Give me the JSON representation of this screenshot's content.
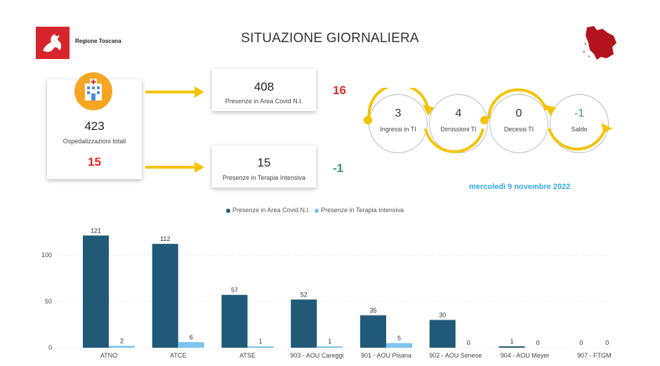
{
  "header": {
    "logo_text": "Regione Toscana",
    "title": "SITUAZIONE GIORNALIERA"
  },
  "totals": {
    "hospitalized_value": "423",
    "hospitalized_label": "Ospedalizzazioni totali",
    "hospitalized_delta": "15"
  },
  "covid_area": {
    "value": "408",
    "label": "Presenze in Area Covid N.I.",
    "delta": "16"
  },
  "icu": {
    "value": "15",
    "label": "Presenze in Terapia Intensiva",
    "delta": "-1"
  },
  "flow": [
    {
      "value": "3",
      "label": "Ingressi in TI"
    },
    {
      "value": "4",
      "label": "Dimissioni TI"
    },
    {
      "value": "0",
      "label": "Decessi TI"
    },
    {
      "value": "-1",
      "label": "Saldo"
    }
  ],
  "date": "mercoledì 9 novembre 2022",
  "colors": {
    "accent_yellow": "#f5c400",
    "dark_bar": "#215a79",
    "light_bar": "#7cc4ef",
    "red": "#e02b1f",
    "green": "#2e9e63",
    "date_blue": "#35a9e0"
  },
  "chart_data": {
    "type": "bar",
    "categories": [
      "ATNO",
      "ATCE",
      "ATSE",
      "903 - AOU Careggi",
      "901 - AOU Pisana",
      "902 - AOU Senese",
      "904 - AOU Meyer",
      "907 - FTGM"
    ],
    "series": [
      {
        "name": "Presenze in Area Covid N.I.",
        "values": [
          121,
          112,
          57,
          52,
          35,
          30,
          1,
          0
        ],
        "color": "#215a79"
      },
      {
        "name": "Presenze in Terapia Intensiva",
        "values": [
          2,
          6,
          1,
          1,
          5,
          0,
          0,
          0
        ],
        "color": "#7cc4ef"
      }
    ],
    "yticks": [
      0,
      50,
      100
    ],
    "ylim": [
      0,
      130
    ],
    "legend": "top-center",
    "grid": true
  }
}
